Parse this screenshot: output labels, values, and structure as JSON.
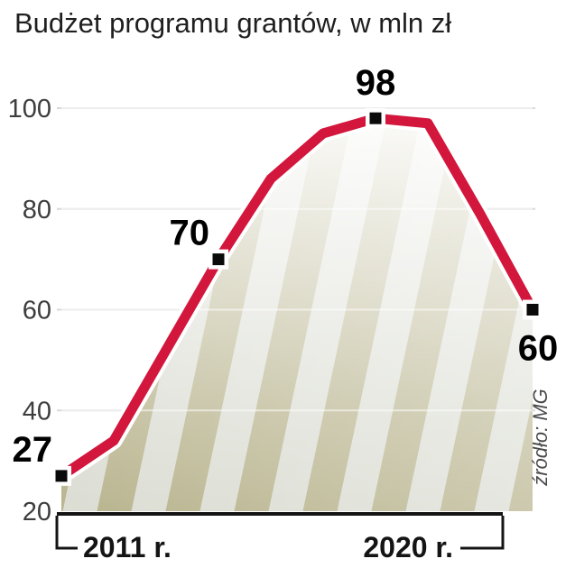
{
  "title": "Budżet programu grantów, w mln zł",
  "source": "źródło: MG",
  "x_axis": {
    "start_label": "2011 r.",
    "end_label": "2020 r."
  },
  "chart_data": {
    "type": "line",
    "title": "Budżet programu grantów, w mln zł",
    "units": "mln zł",
    "x": [
      2011,
      2012,
      2013,
      2014,
      2015,
      2016,
      2017,
      2018,
      2019,
      2020
    ],
    "values": [
      27,
      34,
      52,
      70,
      86,
      95,
      98,
      97,
      79,
      60
    ],
    "labeled_points": [
      {
        "x": 2011,
        "value": 27,
        "pos": "above-left"
      },
      {
        "x": 2014,
        "value": 70,
        "pos": "above-left"
      },
      {
        "x": 2017,
        "value": 98,
        "pos": "above"
      },
      {
        "x": 2020,
        "value": 60,
        "pos": "below"
      }
    ],
    "ylim": [
      20,
      100
    ],
    "yticks": [
      100,
      80,
      60,
      40,
      20
    ],
    "xlabel": "",
    "ylabel": "",
    "grid": true,
    "legend": "none",
    "x_range_labels": [
      "2011 r.",
      "2020 r."
    ],
    "line_color": "#d2163c",
    "stripe_colors": [
      "#b6b18a",
      "#dadcd2"
    ]
  }
}
